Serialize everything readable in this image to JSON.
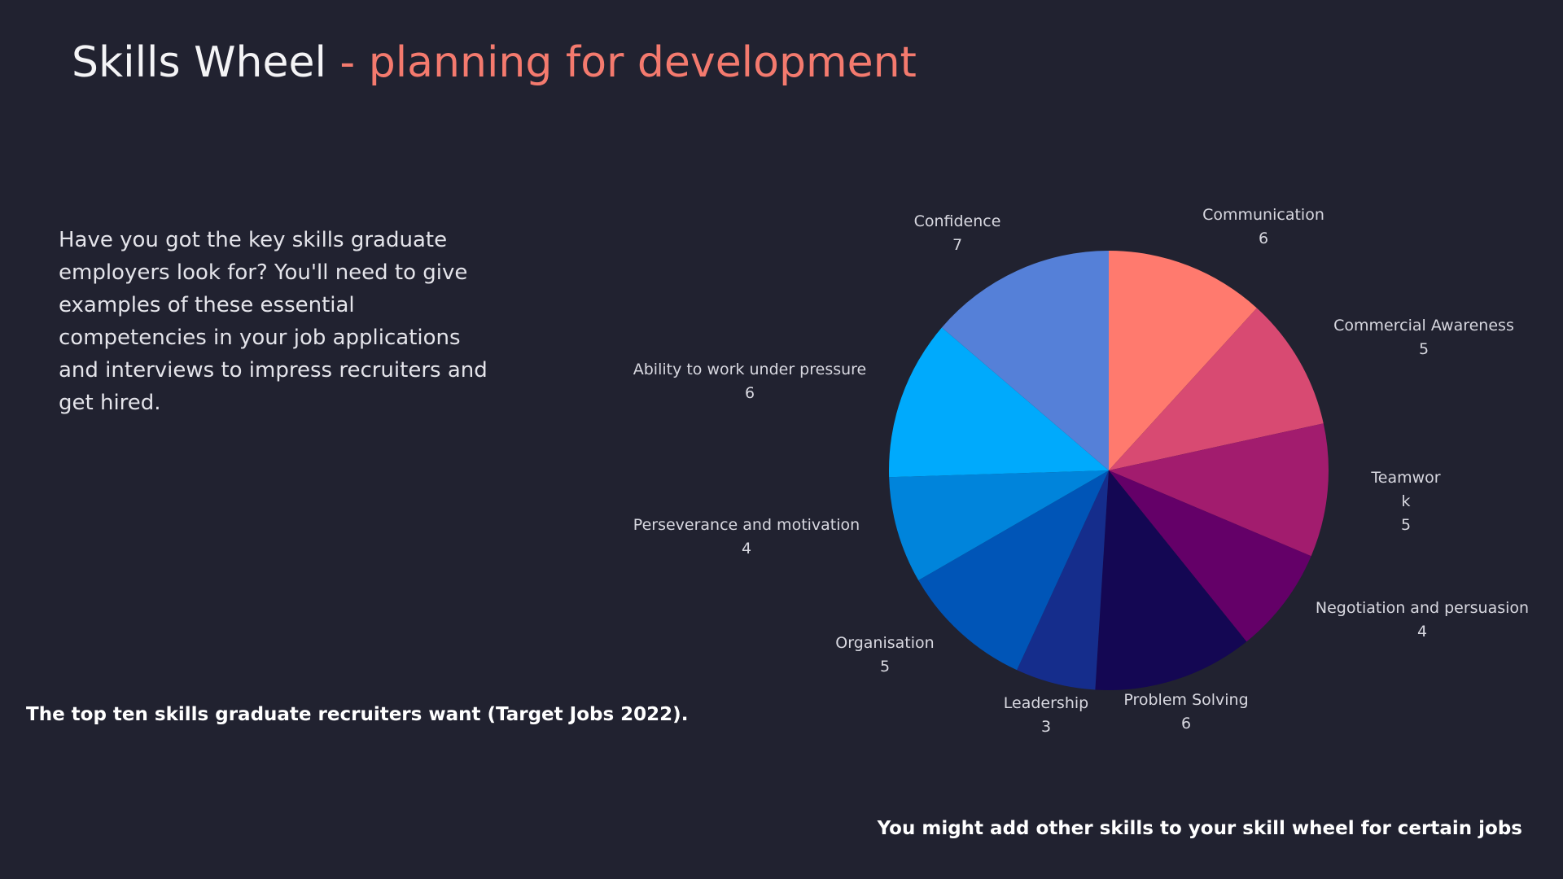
{
  "header": {
    "title_main": "Skills Wheel",
    "title_accent": "- planning for development"
  },
  "intro_text": "Have you got the key skills graduate employers look for? You'll need to give examples of these essential competencies in your job applications and interviews to impress recruiters and get hired.",
  "caption": "The top ten skills graduate recruiters want (Target Jobs 2022).",
  "footnote": "You might add other skills to your skill wheel for certain jobs",
  "chart_data": {
    "type": "pie",
    "title": "",
    "slices": [
      {
        "name": "Communication",
        "value": 6,
        "color": "#ff7a6e",
        "label_lines": [
          "Communication",
          "6"
        ]
      },
      {
        "name": "Commercial Awareness",
        "value": 5,
        "color": "#d84a72",
        "label_lines": [
          "Commercial Awareness",
          "5"
        ]
      },
      {
        "name": "Teamwork",
        "value": 5,
        "color": "#a21c6e",
        "label_lines": [
          "Teamwor",
          "k",
          "5"
        ]
      },
      {
        "name": "Negotiation and persuasion",
        "value": 4,
        "color": "#640068",
        "label_lines": [
          "Negotiation and persuasion",
          "4"
        ]
      },
      {
        "name": "Problem Solving",
        "value": 6,
        "color": "#140753",
        "label_lines": [
          "Problem Solving",
          "6"
        ]
      },
      {
        "name": "Leadership",
        "value": 3,
        "color": "#152d8c",
        "label_lines": [
          "Leadership",
          "3"
        ]
      },
      {
        "name": "Organisation",
        "value": 5,
        "color": "#0055b7",
        "label_lines": [
          "Organisation",
          "5"
        ]
      },
      {
        "name": "Perseverance and motivation",
        "value": 4,
        "color": "#0084db",
        "label_lines": [
          "Perseverance and motivation",
          "4"
        ]
      },
      {
        "name": "Ability to work under pressure",
        "value": 6,
        "color": "#00aafc",
        "label_lines": [
          "Ability to work under pressure",
          "6"
        ]
      },
      {
        "name": "Confidence",
        "value": 7,
        "color": "#5580d8",
        "label_lines": [
          "Confidence",
          "7"
        ]
      }
    ]
  }
}
